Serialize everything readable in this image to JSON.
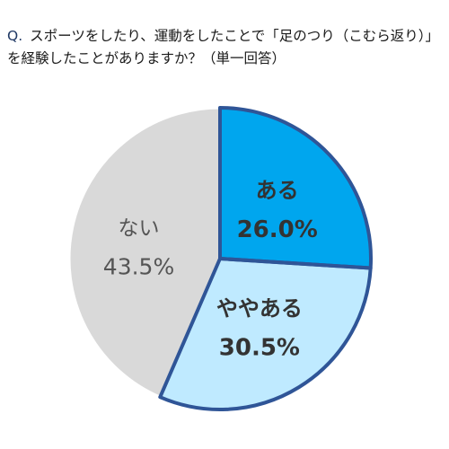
{
  "question": {
    "label": "Q.",
    "text": "スポーツをしたり、運動をしたことで「足のつり（こむら返り）」を経験したことがありますか？（単一回答）"
  },
  "chart_data": {
    "type": "pie",
    "start_angle_deg": 0,
    "direction": "clockwise",
    "slices": [
      {
        "label": "ある",
        "value": 26.0,
        "value_label": "26.0%",
        "color": "#00a6ee",
        "highlight": true
      },
      {
        "label": "ややある",
        "value": 30.5,
        "value_label": "30.5%",
        "color": "#bfeaff",
        "highlight": true
      },
      {
        "label": "ない",
        "value": 43.5,
        "value_label": "43.5%",
        "color": "#d9d9d9",
        "highlight": false
      }
    ],
    "highlight_border_color": "#2f5597"
  }
}
